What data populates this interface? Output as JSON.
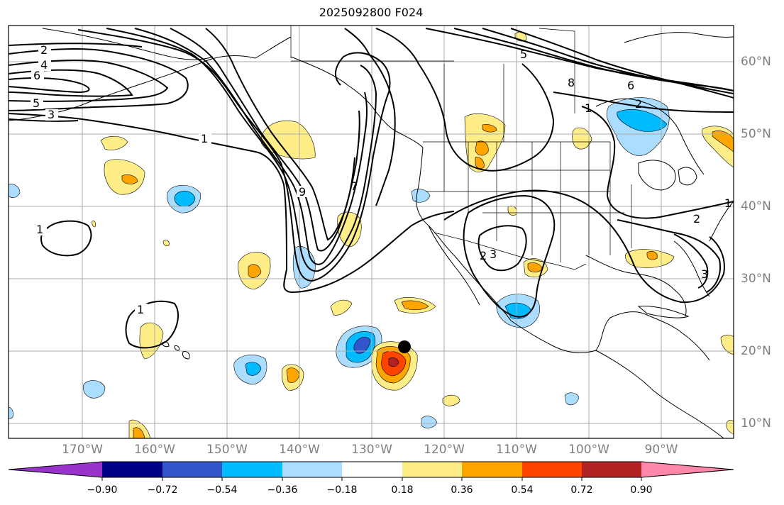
{
  "title": "2025092800 F024",
  "lon_ticks": [
    "170°W",
    "160°W",
    "150°W",
    "140°W",
    "130°W",
    "120°W",
    "110°W",
    "100°W",
    "90°W"
  ],
  "lat_ticks": [
    "60°N",
    "50°N",
    "40°N",
    "30°N",
    "20°N",
    "10°N"
  ],
  "colorbar": {
    "labels": [
      "−0.90",
      "−0.72",
      "−0.54",
      "−0.36",
      "−0.18",
      "0.18",
      "0.36",
      "0.54",
      "0.72",
      "0.90"
    ],
    "colors": [
      "#9933cc",
      "#000088",
      "#3355cc",
      "#00bbff",
      "#aaddff",
      "#ffffff",
      "#ffee88",
      "#ffa500",
      "#ff4400",
      "#b22222",
      "#ff88aa"
    ]
  },
  "contour_labels": [
    "2",
    "4",
    "6",
    "5",
    "3",
    "1",
    "9",
    "1",
    "1",
    "7",
    "5",
    "8",
    "6",
    "2",
    "1",
    "2",
    "3",
    "2",
    "3",
    "1"
  ],
  "colors": {
    "grid": "#aaaaaa",
    "contour": "#000000",
    "tick_text": "#808080",
    "marker": "#000000"
  }
}
